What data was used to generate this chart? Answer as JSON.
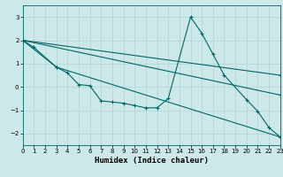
{
  "xlabel": "Humidex (Indice chaleur)",
  "bg_color": "#cce8e8",
  "line_color": "#006666",
  "grid_color": "#b0d4d4",
  "xlim": [
    0,
    23
  ],
  "ylim": [
    -2.5,
    3.5
  ],
  "yticks": [
    -2,
    -1,
    0,
    1,
    2,
    3
  ],
  "xticks": [
    0,
    1,
    2,
    3,
    4,
    5,
    6,
    7,
    8,
    9,
    10,
    11,
    12,
    13,
    14,
    15,
    16,
    17,
    18,
    19,
    20,
    21,
    22,
    23
  ],
  "series": [
    {
      "x": [
        0,
        1,
        3,
        4,
        5,
        6,
        7,
        8,
        9,
        10,
        11,
        12,
        13,
        15,
        16,
        17,
        18,
        20,
        21,
        22,
        23
      ],
      "y": [
        2.0,
        1.7,
        0.85,
        0.6,
        0.1,
        0.05,
        -0.6,
        -0.65,
        -0.7,
        -0.8,
        -0.9,
        -0.9,
        -0.5,
        3.0,
        2.3,
        1.4,
        0.5,
        -0.55,
        -1.05,
        -1.75,
        -2.15
      ],
      "marker": true
    },
    {
      "x": [
        0,
        23
      ],
      "y": [
        2.0,
        0.5
      ],
      "marker": false
    },
    {
      "x": [
        0,
        23
      ],
      "y": [
        2.0,
        -0.35
      ],
      "marker": false
    },
    {
      "x": [
        0,
        3,
        23
      ],
      "y": [
        2.0,
        0.85,
        -2.15
      ],
      "marker": false
    }
  ]
}
